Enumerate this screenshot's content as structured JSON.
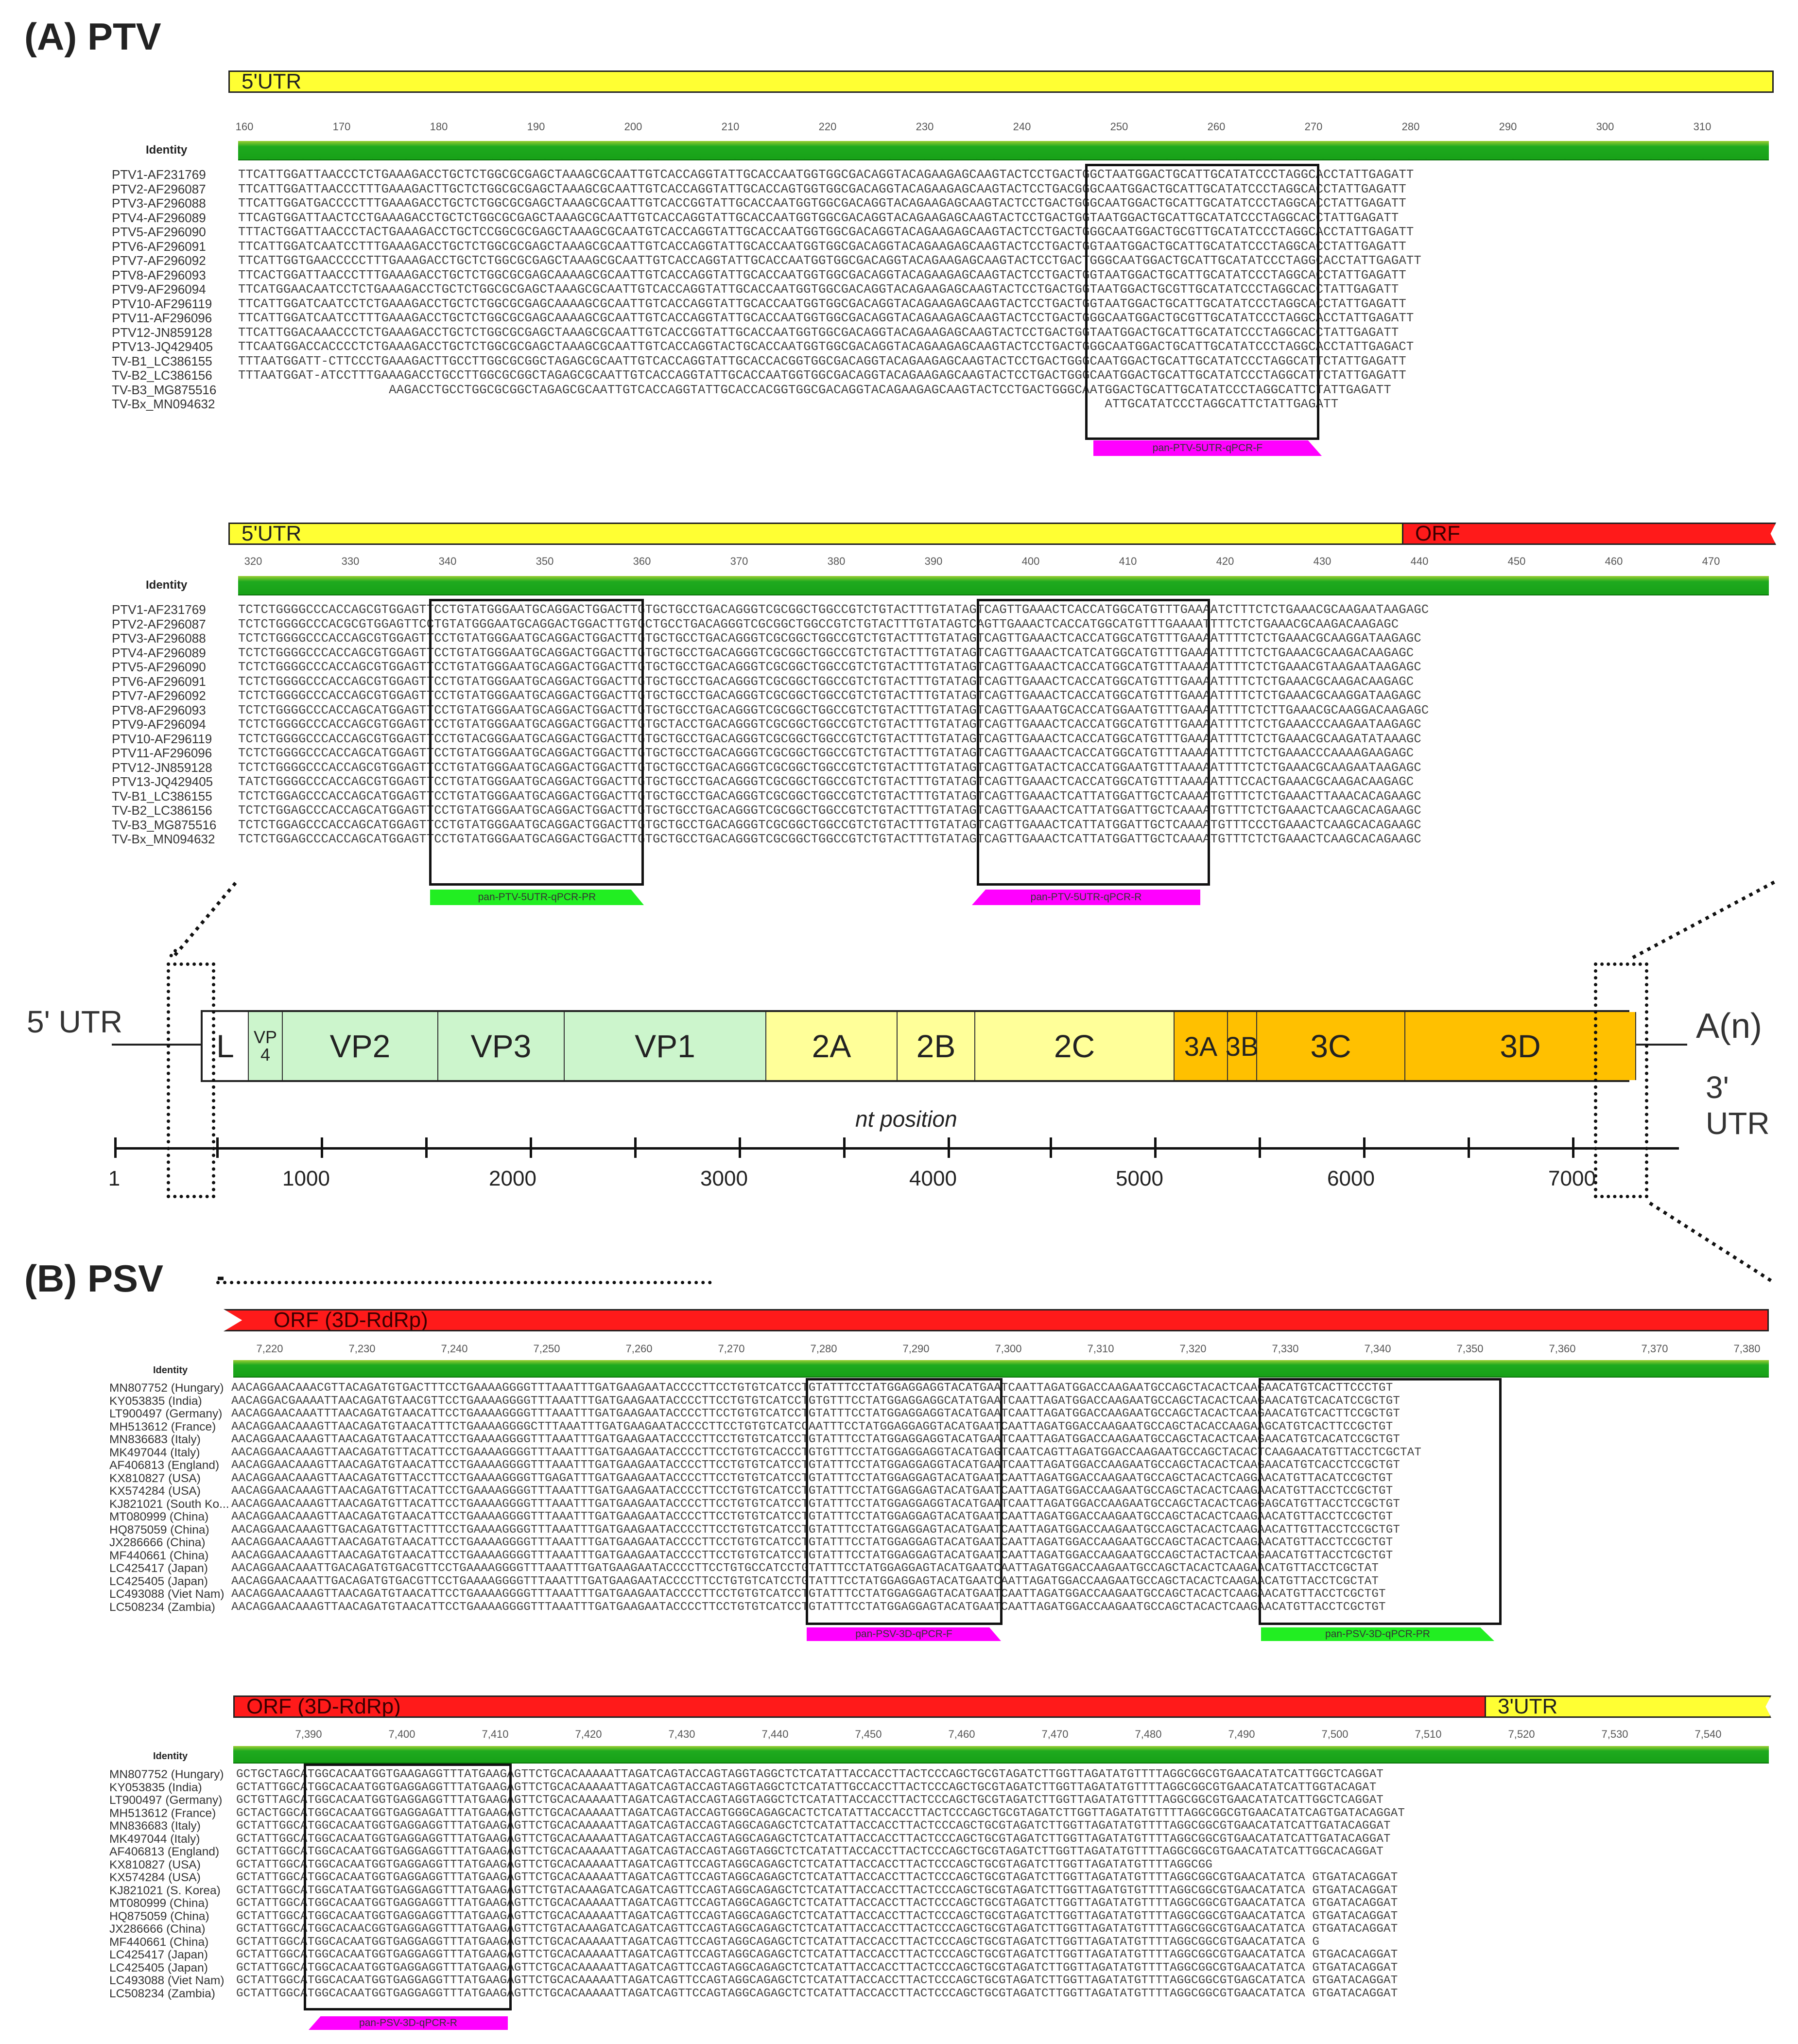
{
  "panels": {
    "a_title": "(A) PTV",
    "b_title": "(B) PSV"
  },
  "identity_label": "Identity",
  "ptv1": {
    "bar_label": "5'UTR",
    "ruler": [
      "160",
      "170",
      "180",
      "190",
      "200",
      "210",
      "220",
      "230",
      "240",
      "250",
      "260",
      "270",
      "280",
      "290",
      "300",
      "310"
    ],
    "names": [
      "PTV1-AF231769",
      "PTV2-AF296087",
      "PTV3-AF296088",
      "PTV4-AF296089",
      "PTV5-AF296090",
      "PTV6-AF296091",
      "PTV7-AF296092",
      "PTV8-AF296093",
      "PTV9-AF296094",
      "PTV10-AF296119",
      "PTV11-AF296096",
      "PTV12-JN859128",
      "PTV13-JQ429405",
      "TV-B1_LC386155",
      "TV-B2_LC386156",
      "TV-B3_MG875516",
      "TV-Bx_MN094632"
    ],
    "seqs": [
      "TTCATTGGATTAACCCTCTGAAAGACCTGCTCTGGCGCGAGCTAAAGCGCAATTGTCACCAGGTATTGCACCAATGGTGGCGACAGGTACAGAAGAGCAAGTACTCCTGACTGGCTAATGGACTGCATTGCATATCCCTAGGCACCTATTGAGATT",
      "TTCATTGGATTAACCCTTTGAAAGACTTGCTCTGGCGCGAGCTAAAGCGCAATTGTCACCAGGTATTGCACCAGTGGTGGCGACAGGTACAGAAGAGCAAGTACTCCTGACGGGCAATGGACTGCATTGCATATCCCTAGGCACCTATTGAGATT",
      "TTCATTGGATGACCCCTTTGAAAGACCTGCTCTGGCGCGAGCTAAAGCGCAATTGTCACCGGTATTGCACCAATGGTGGCGACAGGTACAGAAGAGCAAGTACTCCTGACTGGGCAATGGACTGCATTGCATATCCCTAGGCACCTATTGAGATT",
      "TTCAGTGGATTAACTCCTGAAAGACCTGCTCTGGCGCGAGCTAAAGCGCAATTGTCACCAGGTATTGCACCAATGGTGGCGACAGGTACAGAAGAGCAAGTACTCCTGACTGGTAATGGACTGCATTGCATATCCCTAGGCACCTATTGAGATT",
      "TTTACTGGATTAACCCTACTGAAAGACCTGCTCCGGCGCGAGCTAAAGCGCAATGTCACCAGGTATTGCACCAATGGTGGCGACAGGTACAGAAGAGCAAGTACTCCTGACTGGGCAATGGACTGCGTTGCATATCCCTAGGCACCTATTGAGATT",
      "TTCATTGGATCAATCCTTTGAAAGACCTGCTCTGGCGCGAGCTAAAGCGCAATTGTCACCAGGTATTGCACCAATGGTGGCGACAGGTACAGAAGAGCAAGTACTCCTGACTGGTAATGGACTGCATTGCATATCCCTAGGCACCTATTGAGATT",
      "TTCATTGGTGAACCCCCTTTGAAAGACCTGCTCTGGCGCGAGCTAAAGCGCAATTGTCACCAGGTATTGCACCAATGGTGGCGACAGGTACAGAAGAGCAAGTACTCCTGACTGGGCAATGGACTGCATTGCATATCCCTAGGCACCTATTGAGATT",
      "TTCACTGGATTAACCCTTTGAAAGACCTGCTCTGGCGCGAGCAAAAGCGCAATTGTCACCAGGTATTGCACCAATGGTGGCGACAGGTACAGAAGAGCAAGTACTCCTGACTGGTAATGGACTGCATTGCATATCCCTAGGCACCTATTGAGATT",
      "TTCATGGAACAATCCTCTGAAAGACCTGCTCTGGCGCGAGCTAAAGCGCAATTGTCACCAGGTATTGCACCAATGGTGGCGACAGGTACAGAAGAGCAAGTACTCCTGACTGGTAATGGACTGCGTTGCATATCCCTAGGCACCTATTGAGATT",
      "TTCATTGGATCAATCCTCTGAAAGACCTGCTCTGGCGCGAGCAAAAGCGCAATTGTCACCAGGTATTGCACCAATGGTGGCGACAGGTACAGAAGAGCAAGTACTCCTGACTGGTAATGGACTGCATTGCATATCCCTAGGCACCTATTGAGATT",
      "TTCATTGGATCAATCCTTTGAAAGACCTGCTCTGGCGCGAGCAAAAGCGCAATTGTCACCAGGTATTGCACCAATGGTGGCGACAGGTACAGAAGAGCAAGTACTCCTGACTGGGCAATGGACTGCGTTGCATATCCCTAGGCACCTATTGAGATT",
      "TTCATTGGACAAACCCTCTGAAAGACCTGCTCTGGCGCGAGCTAAAGCGCAATTGTCACCGGTATTGCACCAATGGTGGCGACAGGTACAGAAGAGCAAGTACTCCTGACTGGTAATGGACTGCATTGCATATCCCTAGGCACCTATTGAGATT",
      "TTCAATGGACCACCCCTCTGAAAGACCTGCTCTGGCGCGAGCTAAAGCGCAATTGTCACCAGGTACTGCACCAATGGTGGCGACAGGTACAGAAGAGCAAGTACTCCTGACTGGGCAATGGACTGCATTGCATATCCCTAGGCACCTATTGAGACT",
      "TTTAATGGATT-CTTCCCTGAAAGACTTGCCTTGGCGCGGCTAGAGCGCAATTGTCACCAGGTATTGCACCACGGTGGCGACAGGTACAGAAGAGCAAGTACTCCTGACTGGGCAATGGACTGCATTGCATATCCCTAGGCATTCTATTGAGATT",
      "TTTAATGGAT-ATCCTTTGAAAGACCTGCCTTGGCGCGGCTAGAGCGCAATTGTCACCAGGTATTGCACCAATGGTGGCGACAGGTACAGAAGAGCAAGTACTCCTGACTGGGCAATGGACTGCATTGCATATCCCTAGGCATTCTATTGAGATT",
      "                    AAGACCTGCCTGGCGCGGCTAGAGCGCAATTGTCACCAGGTATTGCACCACGGTGGCGACAGGTACAGAAGAGCAAGTACTCCTGACTGGGCAATGGACTGCATTGCATATCCCTAGGCATTCTATTGAGATT",
      "                                                                                                                   ATTGCATATCCCTAGGCATTCTATTGAGATT"
    ],
    "primer": "pan-PTV-5UTR-qPCR-F"
  },
  "ptv2": {
    "bar_label_1": "5'UTR",
    "bar_label_2": "ORF",
    "ruler": [
      "320",
      "330",
      "340",
      "350",
      "360",
      "370",
      "380",
      "390",
      "400",
      "410",
      "420",
      "430",
      "440",
      "450",
      "460",
      "470"
    ],
    "names": [
      "PTV1-AF231769",
      "PTV2-AF296087",
      "PTV3-AF296088",
      "PTV4-AF296089",
      "PTV5-AF296090",
      "PTV6-AF296091",
      "PTV7-AF296092",
      "PTV8-AF296093",
      "PTV9-AF296094",
      "PTV10-AF296119",
      "PTV11-AF296096",
      "PTV12-JN859128",
      "PTV13-JQ429405",
      "TV-B1_LC386155",
      "TV-B2_LC386156",
      "TV-B3_MG875516",
      "TV-Bx_MN094632"
    ],
    "seqs": [
      "TCTCTGGGGCCCACCAGCGTGGAGTTCCTGTATGGGAATGCAGGACTGGACTTGTGCTGCCTGACAGGGTCGCGGCTGGCCGTCTGTACTTTGTATAGTCAGTTGAAACTCACCATGGCATGTTTGAAAATCTTTCTCTGAAACGCAAGAATAAGAGC",
      "TCTCTGGGGCCCACGCGTGGAGTTCCTGTATGGGAATGCAGGACTGGACTTGTGCTGCCTGACAGGGTCGCGGCTGGCCGTCTGTACTTTGTATAGTCAGTTGAAACTCACCATGGCATGTTTGAAAATTTTCTCTGAAACGCAAGACAAGAGC",
      "TCTCTGGGGCCCACCAGCGTGGAGTTCCTGTATGGGAATGCAGGACTGGACTTGTGCTGCCTGACAGGGTCGCGGCTGGCCGTCTGTACTTTGTATAGTCAGTTGAAACTCACCATGGCATGTTTGAAAATTTTCTCTGAAACGCAAGGATAAGAGC",
      "TCTCTGGGGCCCACCAGCGTGGAGTTCCTGTATGGGAATGCAGGACTGGACTTGTGCTGCCTGACAGGGTCGCGGCTGGCCGTCTGTACTTTGTATAGTCAGTTGAAACTCATCATGGCATGTTTGAAAATTTTCTCTGAAACGCAAGACAAGAGC",
      "TCTCTGGGGCCCACCAGCGTGGAGTTCCTGTATGGGAATGCAGGACTGGACTTGTGCTGCCTGACAGGGTCGCGGCTGGCCGTCTGTACTTTGTATAGTCAGTTGAAACTCACCATGGCATGTTTAAAAATTTTCTCTGAAACGTAAGAATAAGAGC",
      "TCTCTGGGGCCCACCAGCGTGGAGTTCCTGTATGGGAATGCAGGACTGGACTTGTGCTGCCTGACAGGGTCGCGGCTGGCCGTCTGTACTTTGTATAGTCAGTTGAAACTCACCATGGCATGTTTGAAAATTTTCTCTGAAACGCAAGACAAGAGC",
      "TCTCTGGGGCCCACCAGCGTGGAGTTCCTGTATGGGAATGCAGGACTGGACTTGTGCTGCCTGACAGGGTCGCGGCTGGCCGTCTGTACTTTGTATAGTCAGTTGAAACTCACCATGGCATGTTTGAAAATTTTCTCTGAAACGCAAGGATAAGAGC",
      "TCTCTGGGGCCCACCAGCATGGAGTTCCTGTATGGGAATGCAGGACTGGACTTGTGCTGCCTGACAGGGTCGCGGCTGGCCGTCTGTACTTTGTATAGTCAGTTGAAATGCACCATGGAATGTTTGAAAATTTTCTCTTGAAACGCAAGGACAAGAGC",
      "TCTCTGGGGCCCACCAGCGTGGAGTTCCTGTATGGGAATGCAGGACTGGACTTGTGCTACCTGACAGGGTCGCGGCTGGCCGTCTGTACTTTGTATAGTCAGTTGAAACTCACCATGGCATGTTTGAAAATTTTCTCTGAAACCCAAGAATAAGAGC",
      "TCTCTGGGGCCCACCAGCGTGGAGTTCCTGTACGGGAATGCAGGACTGGACTTGTGCTGCCTGACAGGGTCGCGGCTGGCCGTCTGTACTTTGTATAGTCAGTTGAAACTCACCATGGCATGTTTGAAAATTTTCTCTGAAACGCAAGATATAAAGC",
      "TCTCTGGGGCCCACCAGCATGGAGTTCCTGTATGGGAATGCAGGACTGGACTTGTGCTGCCTGACAGGGTCGCGGCTGGCCGTCTGTACTTTGTATAGTCAGTTGAAACTCACCATGGCATGTTTAAAAATTTTCTCTGAAACCCAAAAGAAGAGC",
      "TCTCTGGGGCCCACCAGCGTGGAGTTCCTGTATGGGAATGCAGGACTGGACTTGTGCTGCCTGACAGGGTCGCGGCTGGCCGTCTGTACTTTGTATAGTCAGTTGATACTCACCATGGAATGTTTAAAAATTTTCTCTGAAACGCAAGAATAAGAGC",
      "TATCTGGGGCCCACCAGCGTGGAGTTCCTGTATGGGAATGCAGGACTGGACTTGTGCTGCCTGACAGGGTCGCGGCTGGCCGTCTGTACTTTGTATAGTCAGTTGAAACTCACCATGGCATGTTTAAAAATTTCCACTGAAACGCAAGACAAGAGC",
      "TCTCTGGAGCCCACCAGCATGGAGTTCCTGTATGGGAATGCAGGACTGGACTTGTGCTGCCTGACAGGGTCGCGGCTGGCCGTCTGTACTTTGTATAGTCAGTTGAAACTCATTATGGATTGCTCAAAATGTTTCTCTGAAACTTAAACACAGAAGC",
      "TCTCTGGAGCCCACCAGCATGGAGTTCCTGTATGGGAATGCAGGACTGGACTTGTGCTGCCTGACAGGGTCGCGGCTGGCCGTCTGTACTTTGTATAGTCAGTTGAAACTCATTATGGATTGCTCAAAATGTTTCTCTGAAACTCAAGCACAGAAGC",
      "TCTCTGGAGCCCACCAGCATGGAGTTCCTGTATGGGAATGCAGGACTGGACTTGTGCTGCCTGACAGGGTCGCGGCTGGCCGTCTGTACTTTGTATAGTCAGTTGAAACTCATTATGGATTGCTCAAAATGTTTCCCTGAAACTCAAGCACAGAAGC",
      "TCTCTGGAGCCCACCAGCATGGAGTTCCTGTATGGGAATGCAGGACTGGACTTGTGCTGCCTGACAGGGTCGCGGCTGGCCGTCTGTACTTTGTATAGTCAGTTGAAACTCATTATGGATTGCTCAAAATGTTTCTCTGAAACTCAAGCACAGAAGC"
    ],
    "primer_1": "pan-PTV-5UTR-qPCR-PR",
    "primer_2": "pan-PTV-5UTR-qPCR-R"
  },
  "genome": {
    "left_label": "5' UTR",
    "right_label": "A(n)",
    "right_sub": "3' UTR",
    "segments": [
      "L",
      "VP\n4",
      "VP2",
      "VP3",
      "VP1",
      "2A",
      "2B",
      "2C",
      "3A",
      "3B",
      "3C",
      "3D"
    ],
    "axis_title": "nt position",
    "axis_labels": [
      "1",
      "1000",
      "2000",
      "3000",
      "4000",
      "5000",
      "6000",
      "7000"
    ]
  },
  "psv1": {
    "bar_label": "ORF (3D-RdRp)",
    "ruler": [
      "7,220",
      "7,230",
      "7,240",
      "7,250",
      "7,260",
      "7,270",
      "7,280",
      "7,290",
      "7,300",
      "7,310",
      "7,320",
      "7,330",
      "7,340",
      "7,350",
      "7,360",
      "7,370",
      "7,380"
    ],
    "names": [
      "MN807752 (Hungary)",
      "KY053835 (India)",
      "LT900497 (Germany)",
      "MH513612 (France)",
      "MN836683 (Italy)",
      "MK497044 (Italy)",
      "AF406813 (England)",
      "KX810827 (USA)",
      "KX574284 (USA)",
      "KJ821021 (South Ko...",
      "MT080999 (China)",
      "HQ875059 (China)",
      "JX286666 (China)",
      "MF440661 (China)",
      "LC425417 (Japan)",
      "LC425405 (Japan)",
      "LC493088 (Viet Nam)",
      "LC508234 (Zambia)"
    ],
    "seqs": [
      "AACAGGAACAAACGTTACAGATGTGACTTTCCTGAAAAGGGGTTTAAATTTGATGAAGAATACCCCTTCCTGTGTCATCCTGTATTTCCTATGGAGGAGGTACATGAATCAATTAGATGGACCAAGAATGCCAGCTACACTCAAGAACATGTCACTTCCCTGT",
      "AACAGGACGAAAATTAACAGATGTAACGTTCCTGAAAAGGGGTTTAAATTTGATGAAGAATACCCCTTCCTGTGTCATCCTGTGTTTCCTATGGAGGAGGCATATGAATCAATTAGATGGACCAAGAATGCCAGCTACACTCAAGAACATGTCACATCCGCTGT",
      "AACAGGAACAAATTTAACAGATGTAACATTCCTGAAAAGGGGTTTAAATTTGATGAAGAATACCCCTTCCTGTGTCATCCTGTATTTCCTATGGAGGAGGTACATGAATCAATTAGATGGACCAAGAATGCCAGCTACACTCAAGAACATGTCACTTCCGCTGT",
      "AACAGGAACAAAGTTAACAGATGTAACATTTCTGAAAAGGGGCTTTAAATTTGATGAAGAATACCCCTTCCTGTGTCATCCAATTTCCTATGGAGGAGGTACATGAATCAATTAGATGGACCAAGAATGCCAGCTACACCAAGAAGCATGTCACTTCCGCTGT",
      "AACAGGAACAAAGTTAACAGATGTAACATTCCTGAAAAGGGGTTTAAATTTGATGAAGAATACCCCTTCCTGTGTCATCCTGTATTTCCTATGGAGGAGGTACATGAATCAATTAGATGGACCAAGAATGCCAGCTACACTCAAGAACATGTCACATCCGCTGT",
      "AACAGGAACAAAGTTAACAGATGTTACATTCCTGAAAAGGGGTTTAAATTTGATGAAGAATACCCCTTCCTGTGTCACCCTGTGTTTCCTATGGAGGAGGTACATGAGTCAATCAGTTAGATGGACCAAGAATGCCAGCTACACTCAAGAACATGTTACCTCGCTAT",
      "AACAGGAACAAAGTTAACAGATGTAACATTCCTGAAAAGGGGTTTAAATTTGATGAAGAATACCCCTTCCTGTGTCATCCTGTATTTCCTATGGAGGAGGTACATGAATCAATTAGATGGACCAAGAATGCCAGCTACACTCAAGAACATGTCACCTCCGCTGT",
      "AACAGGAACAAAGTTAACAGATGTTACCTTCCTGAAAAGGGGTTGAGATTTGATGAAGAATACCCCTTCCTGTGTCATCCTGTATTTCCTATGGAGGAGTACATGAATCAATTAGATGGACCAAGAATGCCAGCTACACTCAGGAACATGTTACATCCGCTGT",
      "AACAGGAACAAAGTTAACAGATGTTACATTCCTGAAAAGGGGTTTAAATTTGATGAAGAATACCCCTTCCTGTGTCATCCTGTATTTCCTATGGAGGAGTACATGAATCAATTAGATGGACCAAGAATGCCAGCTACACTCAAGAACATGTTACCTCCGCTGT",
      "AACAGGAACAAAGTTAACAGATGTTACATTCCTGAAAAGGGGTTTAAATTTGATGAAGAATACCCCTTCCTGTGTCATCCTGTATTTCCTATGGAGGAGGTACATGAATCAATTAGATGGACCAAGAATGCCAGCTACACTCAGGAGCATGTTACCTCCGCTGT",
      "AACAGGAACAAAGTTAACAGATGTAACATTCCTGAAAAGGGGTTTAAATTTGATGAAGAATACCCCTTCCTGTGTCATCCTGTATTTCCTATGGAGGAGTACATGAATCAATTAGATGGACCAAGAATGCCAGCTACACTCAAGAACATGTTACCTCCGCTGT",
      "AACAGGAACAAAGTTGACAGATGTTACTTTCCTGAAAAGGGGTTTAAATTTGATGAAGAATACCCCTTCCTGTGTCATCCTGTATTTCCTATGGAGGAGTACATGAATCAATTAGATGGACCAAGAATGCCAGCTACACTCAAGAACATTGTTACCTCCGCTGT",
      "AACAGGAACAAAGTTAACAGATGTAACATTCCTGAAAAGGGGTTTAAATTTGATGAAGAATACCCCTTCCTGTGTCATCCTGTATTTCCTATGGAGGAGTACATGAATCAATTAGATGGACCAAGAATGCCAGCTACACTCAAGAACATGTTACCTCCGCTGT",
      "AACAGGAACAAAGTTAACAGATGTAACATTCCTGAAAAGGGGTTTAAATTTGATGAAGAATACCCCTTCCTGTGTCATCCTGTATTTCCTATGGAGGAGTACATGAATCAATTAGATGGACCAAGAATGCCAGCTACTACTCAAGAACATGTTACCTCGCTGT",
      "AACAGGAACAAATTGACAGATGTGACGTTCCTGAAAAGGGGTTTAAATTTGATGAAGAATACCCCTTCCTGTGCCATCCTGTATTTCCTATGGAGGAGTACATGAATCAATTAGATGGACCAAGAATGCCAGCTACACTCAAGAACATGTTACCTCGCTAT",
      "AACAGGAACAAATTGACAGATGTGACGTTCCTGAAAAGGGGTTTAAATTTGATGAAGAATACCCCTTCCTGTGTCATCCTGTATTTCCTATGGAGGAGTACATGAATCAATTAGATGGACCAAGAATGCCAGCTACACTCAAGAACATGTTACCTCGCTAT",
      "AACAGGAACAAAGTTAACAGATGTAACATTCCTGAAAAGGGGTTTAAATTTGATGAAGAATACCCCTTCCTGTGTCATCCTGTATTTCCTATGGAGGAGTACATGAATCAATTAGATGGACCAAGAATGCCAGCTACACTCAAGAACATGTTACCTCGCTGT",
      "AACAGGAACAAAGTTAACAGATGTAACATTCCTGAAAAGGGGTTTAAATTTGATGAAGAATACCCCTTCCTGTGTCATCCTGTATTTCCTATGGAGGAGTACATGAATCAATTAGATGGACCAAGAATGCCAGCTACACTCAAGAACATGTTACCTCGCTGT"
    ],
    "primer_1": "pan-PSV-3D-qPCR-F",
    "primer_2": "pan-PSV-3D-qPCR-PR"
  },
  "psv2": {
    "bar_label_1": "ORF (3D-RdRp)",
    "bar_label_2": "3'UTR",
    "ruler": [
      "7,390",
      "7,400",
      "7,410",
      "7,420",
      "7,430",
      "7,440",
      "7,450",
      "7,460",
      "7,470",
      "7,480",
      "7,490",
      "7,500",
      "7,510",
      "7,520",
      "7,530",
      "7,540"
    ],
    "names": [
      "MN807752 (Hungary)",
      "KY053835 (India)",
      "LT900497 (Germany)",
      "MH513612 (France)",
      "MN836683 (Italy)",
      "MK497044 (Italy)",
      "AF406813 (England)",
      "KX810827 (USA)",
      "KX574284 (USA)",
      "KJ821021 (S. Korea)",
      "MT080999 (China)",
      "HQ875059 (China)",
      "JX286666 (China)",
      "MF440661 (China)",
      "LC425417 (Japan)",
      "LC425405 (Japan)",
      "LC493088 (Viet Nam)",
      "LC508234 (Zambia)"
    ],
    "seqs": [
      "GCTGCTAGCATGGCACAATGGTGAAGAGGTTTATGAAGAGTTCTGCACAAAAATTAGATCAGTACCAGTAGGTAGGCTCTCATATTACCACCTTACTCCCAGCTGCGTAGATCTTGGTTAGATATGTTTTAGGCGGCGTGAACATATCATTGGCTCAGGAT",
      "GCTATTGGCATGGCACAATGGTGAGGAGGTTTATGAAGAGTTCTGCACAAAAATTAGATCAGTACCAGTAGGTAGGCTCTCATATTGCCACCTTACTCCCAGCTGCGTAGATCTTGGTTAGATATGTTTTAGGCGGCGTGAACATATCATTGGTACAGAT",
      "GCTGTTAGCATGGCACAATGGTGAGGAGGTTTATGAAGAGTTCTGCACAAAAATTAGATCAGTACCAGTAGGTAGGCTCTCATATTACCACCTTACTCCCAGCTGCGTAGATCTTGGTTAGATATGTTTTAGGCGGCGTGAACATATCATTGGCTCAGGAT",
      "GCTACTGGCATGGCACAATGGTGAGGAGATTTATGAAGAGTTCTGCACAAAAATTAGATCAGTACCAGTGGGCAGAGCACTCTCATATTACCACCTTACTCCCAGCTGCGTAGATCTTGGTTAGATATGTTTTAGGCGGCGTGAACATATCAGTGATACAGGAT",
      "GCTATTGGCATGGCACAATGGTGAGGAGGTTTATGAAGAGTTCTGCACAAAAATTAGATCAGTACCAGTAGGCAGAGCTCTCATATTACCACCTTACTCCCAGCTGCGTAGATCTTGGTTAGATATGTTTTAGGCGGCGTGAACATATCATTGATACAGGAT",
      "GCTATTGGCATGGCACAATGGTGAGGAGGTTTATGAAGAGTTCTGCACAAAAATTAGATCAGTACCAGTAGGCAGAGCTCTCATATTACCACCTTACTCCCAGCTGCGTAGATCTTGGTTAGATATGTTTTAGGCGGCGTGAACATATCATTGATACAGGAT",
      "GCTATTGGCATGGCACAATGGTGAGGAGGTTTATGAAGAGTTCTGCACAAAAATTAGATCAGTACCAGTAGGTAGGCTCTCATATTACCACCTTACTCCCAGCTGCGTAGATCTTGGTTAGATATGTTTTAGGCGGCGTGAACATATCATTGGCACAGGAT",
      "GCTATTGGCATGGCACAATGGTGAGGAGGTTTATGAAGAGTTCTGCACAAAAATTAGATCAGTTCCAGTAGGCAGAGCTCTCATATTACCACCTTACTCCCAGCTGCGTAGATCTTGGTTAGATATGTTTTAGGCGG",
      "GCTATTGGCATGGCACAATGGTGAGGAGGTTTATGAAGAGTTCTGCACAAAAATTAGATCAGTTCCAGTAGGCAGAGCTCTCATATTACCACCTTACTCCCAGCTGCGTAGATCTTGGTTAGATATGTTTTAGGCGGCGTGAACATATCA GTGATACAGGAT",
      "GCTATTGGCATGGCATAATGGTGAGGAGGTTTATGAAGAGTTCTGTACAAAGATCAGATCAGTTCCAGTAGGCAGAGCTCTCATATTACCACCTTACTCCCAGCTGCGTAGATCTTGGTTAGATGTGTTTTAGGCGGCGTGAACATATCA GTGATACAGGAT",
      "GCTATTGGCATGGCACAATGGTGAGGAGGTTTATGAAGAGTTCTGCACAAAAATTAGATCAGTTCCAGTAGGCAGAGCTCTCATATTACCACCTTACTCCCAGCTGCGTAGATCTTGGTTAGATATGTTTTAGGCGGCGTGAACATATCA GTGATACAGGAT",
      "GCTATTGGCATGGCACAATGGTGAGGAGGTTTATGAAGAGTTCTGCACAAAAATTAGATCAGTTCCAGTAGGCAGAGCTCTCATATTACCACCTTACTCCCAGCTGCGTAGATCTTGGTTAGATATGTTTTAGGCGGCGTGAACATATCA GTGATACAGGAT",
      "GCTATTGGCATGGCACAACGGTGAGGAGGTTTATGAAGAGTTCTGTACAAAGATCAGATCAGTTCCAGTAGGCAGAGCTCTCATATTACCACCTTACTCCCAGCTGCGTAGATCTTGGTTAGATATGTTTTAGGCGGCGTGAACATATCA GTGATACAGGAT",
      "GCTATTGGCATGGCACAATGGTGAGGAGGTTTATGAAGAGTTCTGCACAAAAATTAGATCAGTTCCAGTAGGCAGAGCTCTCATATTACCACCTTACTCCCAGCTGCGTAGATCTTGGTTAGATATGTTTTAGGCGGCGTGAACATATCA G",
      "GCTATTGGCATGGCACAATGGTGAGGAGGTTTATGAAGAGTTCTGCACAAAAATTAGATCAGTTCCAGTAGGCAGAGCTCTCATATTACCACCTTACTCCCAGCTGCGTAGATCTTGGTTAGATATGTTTTAGGCGGCGTGAACATATCA GTGACACAGGAT",
      "GCTATTGGCATGGCACAATGGTGAGGAGGTTTATGAAGAGTTCTGCACAAAAATTAGATCAGTTCCAGTAGGCAGAGCTCTCATATTACCACCTTACTCCCAGCTGCGTAGATCTTGGTTAGATATGTTTTAGGCGGCGTGAACATATCA GTGATACAGGAT",
      "GCTATTGGCATGGCACAATGGTGAGGAGGTTTATGAAGAGTTCTGCACAAAAATTAGATCAGTTCCAGTAGGCAGAGCTCTCATATTACCACCTTACTCCCAGCTGCGTAGATCTTGGTTAGATATGTTTTAGGCGGCGTGAGCATATCA GTGATACAGGAT",
      "GCTATTGGCATGGCACAATGGTGAGGAGGTTTATGAAGAGTTCTGCACAAAAATTAGATCAGTTCCAGTAGGCAGAGCTCTCATATTACCACCTTACTCCCAGCTGCGTAGATCTTGGTTAGATATGTTTTAGGCGGCGTGAACATATCA GTGATACAGGAT"
    ],
    "primer_1": "pan-PSV-3D-qPCR-R"
  },
  "colors": {
    "utr_yellow": "#ffff33",
    "orf_red": "#ff1a1a",
    "vp_green": "#ccf5cc",
    "p2_yellow": "#ffff99",
    "p3_orange": "#ffc000",
    "primer_magenta": "#ff00ff",
    "primer_green": "#22ee22"
  }
}
